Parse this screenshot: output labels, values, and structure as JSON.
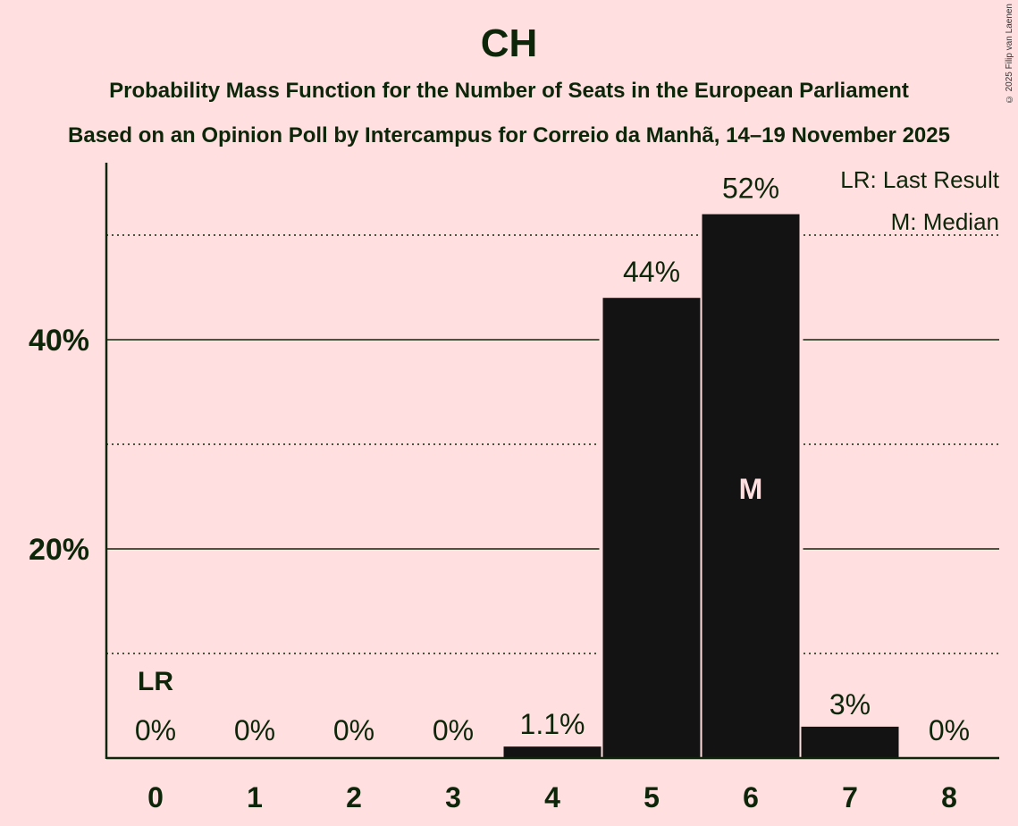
{
  "header": {
    "title": "CH",
    "subtitle1": "Probability Mass Function for the Number of Seats in the European Parliament",
    "subtitle2": "Based on an Opinion Poll by Intercampus for Correio da Manhã, 14–19 November 2025",
    "copyright": "© 2025 Filip van Laenen"
  },
  "legend": {
    "lr": "LR: Last Result",
    "m": "M: Median"
  },
  "colors": {
    "background": "#ffdfdf",
    "bar": "#131313",
    "text": "#0d260a"
  },
  "chart_data": {
    "type": "bar",
    "title": "CH",
    "subtitle": "Probability Mass Function for the Number of Seats in the European Parliament",
    "categories": [
      "0",
      "1",
      "2",
      "3",
      "4",
      "5",
      "6",
      "7",
      "8"
    ],
    "values": [
      0,
      0,
      0,
      0,
      1.1,
      44,
      52,
      3,
      0
    ],
    "labels": [
      "0%",
      "0%",
      "0%",
      "0%",
      "1.1%",
      "44%",
      "52%",
      "3%",
      "0%"
    ],
    "xlabel": "",
    "ylabel": "",
    "yticks": [
      "20%",
      "40%"
    ],
    "ylim": [
      0,
      56
    ],
    "grid": {
      "solid": [
        20,
        40
      ],
      "dotted": [
        10,
        30,
        50
      ]
    },
    "annotations": [
      {
        "category": "0",
        "text": "LR"
      },
      {
        "category": "6",
        "text": "M"
      }
    ],
    "legend_position": "top-right"
  }
}
